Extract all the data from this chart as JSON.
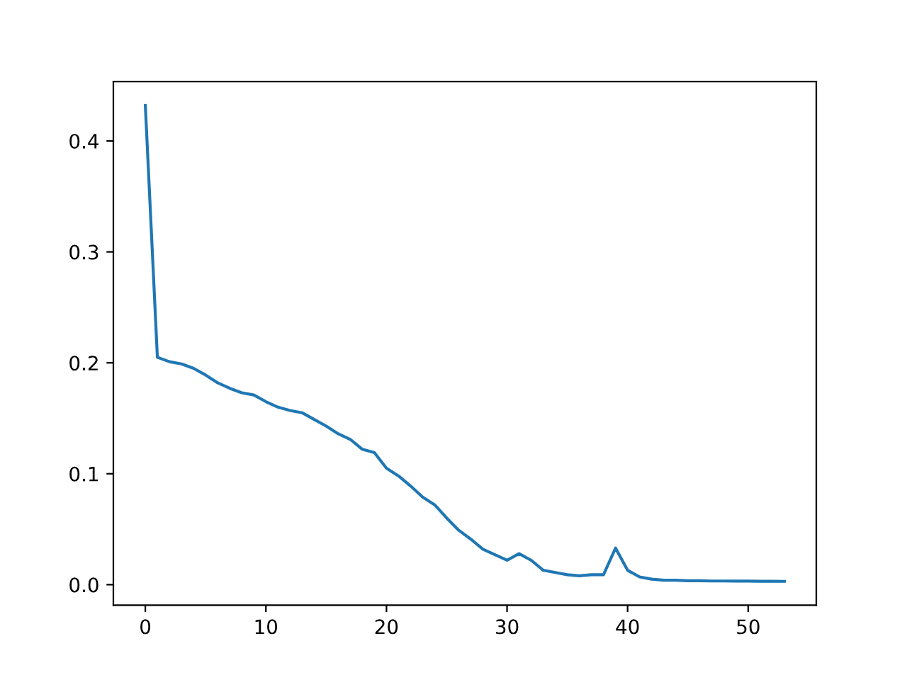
{
  "chart_data": {
    "type": "line",
    "x": [
      0,
      1,
      2,
      3,
      4,
      5,
      6,
      7,
      8,
      9,
      10,
      11,
      12,
      13,
      14,
      15,
      16,
      17,
      18,
      19,
      20,
      21,
      22,
      23,
      24,
      25,
      26,
      27,
      28,
      29,
      30,
      31,
      32,
      33,
      34,
      35,
      36,
      37,
      38,
      39,
      40,
      41,
      42,
      43,
      44,
      45,
      46,
      47,
      48,
      49,
      50,
      51,
      52,
      53
    ],
    "series": [
      {
        "color": "#1f77b4",
        "values": [
          0.432,
          0.205,
          0.201,
          0.199,
          0.195,
          0.189,
          0.182,
          0.177,
          0.173,
          0.171,
          0.165,
          0.16,
          0.157,
          0.155,
          0.149,
          0.143,
          0.136,
          0.131,
          0.122,
          0.119,
          0.105,
          0.098,
          0.089,
          0.079,
          0.072,
          0.06,
          0.049,
          0.041,
          0.032,
          0.027,
          0.022,
          0.028,
          0.022,
          0.013,
          0.011,
          0.009,
          0.008,
          0.009,
          0.009,
          0.033,
          0.013,
          0.007,
          0.005,
          0.004,
          0.004,
          0.0035,
          0.0035,
          0.0033,
          0.0033,
          0.0032,
          0.0032,
          0.0031,
          0.0031,
          0.003
        ]
      }
    ],
    "xlim": [
      -2.65,
      55.65
    ],
    "ylim": [
      -0.0185,
      0.4535
    ],
    "xticks": [
      0,
      10,
      20,
      30,
      40,
      50
    ],
    "yticks": [
      {
        "value": 0,
        "label": "0.0"
      },
      0.1,
      0.2,
      0.3,
      0.4
    ],
    "grid": false,
    "legend": false
  }
}
